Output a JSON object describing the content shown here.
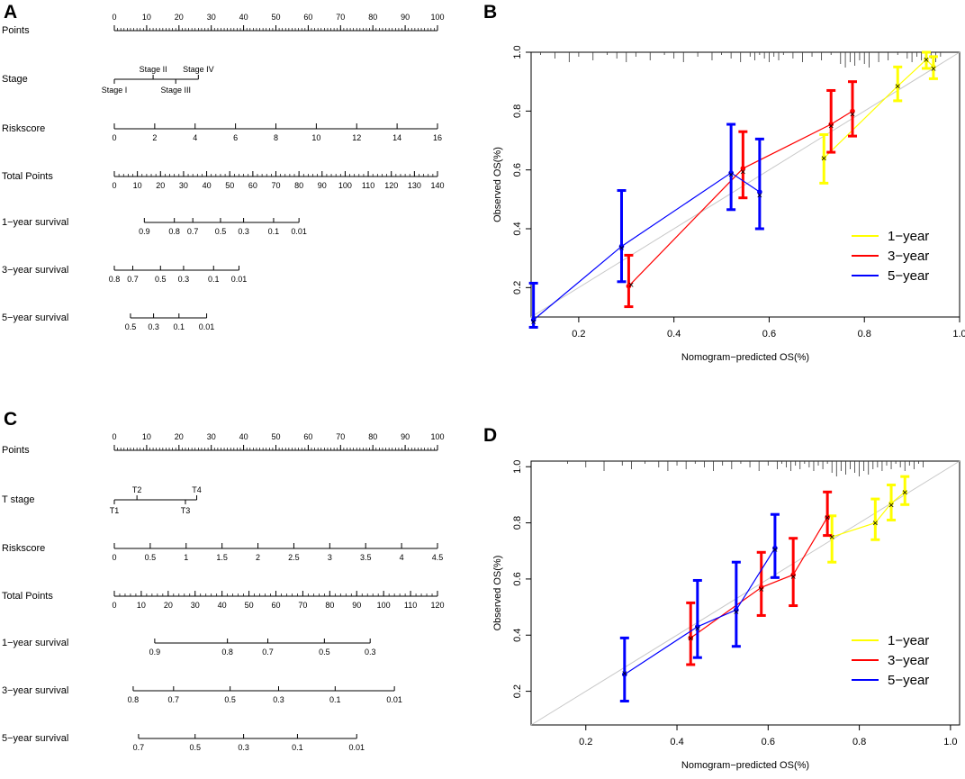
{
  "panels": {
    "A": {
      "label": "A",
      "rows": [
        {
          "name": "Points",
          "ticks": [
            {
              "v": 0,
              "t": "0"
            },
            {
              "v": 10,
              "t": "10"
            },
            {
              "v": 20,
              "t": "20"
            },
            {
              "v": 30,
              "t": "30"
            },
            {
              "v": 40,
              "t": "40"
            },
            {
              "v": 50,
              "t": "50"
            },
            {
              "v": 60,
              "t": "60"
            },
            {
              "v": 70,
              "t": "70"
            },
            {
              "v": 80,
              "t": "80"
            },
            {
              "v": 90,
              "t": "90"
            },
            {
              "v": 100,
              "t": "100"
            }
          ],
          "minor_step": 1,
          "range": [
            0,
            100
          ]
        },
        {
          "name": "Stage",
          "type": "categorical",
          "categories": [
            {
              "label": "Stage I",
              "points": 0,
              "pos": "below"
            },
            {
              "label": "Stage II",
              "points": 12,
              "pos": "above"
            },
            {
              "label": "Stage III",
              "points": 19,
              "pos": "below"
            },
            {
              "label": "Stage IV",
              "points": 26,
              "pos": "above"
            }
          ]
        },
        {
          "name": "Riskscore",
          "ticks": [
            {
              "v": 0,
              "t": "0"
            },
            {
              "v": 2,
              "t": "2"
            },
            {
              "v": 4,
              "t": "4"
            },
            {
              "v": 6,
              "t": "6"
            },
            {
              "v": 8,
              "t": "8"
            },
            {
              "v": 10,
              "t": "10"
            },
            {
              "v": 12,
              "t": "12"
            },
            {
              "v": 14,
              "t": "14"
            },
            {
              "v": 16,
              "t": "16"
            }
          ],
          "range": [
            0,
            16
          ],
          "points_range": [
            0,
            100
          ]
        },
        {
          "name": "Total Points",
          "ticks": [
            {
              "v": 0,
              "t": "0"
            },
            {
              "v": 10,
              "t": "10"
            },
            {
              "v": 20,
              "t": "20"
            },
            {
              "v": 30,
              "t": "30"
            },
            {
              "v": 40,
              "t": "40"
            },
            {
              "v": 50,
              "t": "50"
            },
            {
              "v": 60,
              "t": "60"
            },
            {
              "v": 70,
              "t": "70"
            },
            {
              "v": 80,
              "t": "80"
            },
            {
              "v": 90,
              "t": "90"
            },
            {
              "v": 100,
              "t": "100"
            },
            {
              "v": 110,
              "t": "110"
            },
            {
              "v": 120,
              "t": "120"
            },
            {
              "v": 130,
              "t": "130"
            },
            {
              "v": 140,
              "t": "140"
            }
          ],
          "minor_step": 2,
          "range": [
            0,
            140
          ]
        },
        {
          "name": "1−year survival",
          "type": "survival",
          "total_range": [
            0,
            140
          ],
          "ticks": [
            {
              "tp": 13,
              "t": "0.9"
            },
            {
              "tp": 26,
              "t": "0.8"
            },
            {
              "tp": 34,
              "t": "0.7"
            },
            {
              "tp": 46,
              "t": "0.5"
            },
            {
              "tp": 56,
              "t": "0.3"
            },
            {
              "tp": 69,
              "t": "0.1"
            },
            {
              "tp": 80,
              "t": "0.01"
            }
          ]
        },
        {
          "name": "3−year survival",
          "type": "survival",
          "total_range": [
            0,
            140
          ],
          "ticks": [
            {
              "tp": 0,
              "t": "0.8"
            },
            {
              "tp": 8,
              "t": "0.7"
            },
            {
              "tp": 20,
              "t": "0.5"
            },
            {
              "tp": 30,
              "t": "0.3"
            },
            {
              "tp": 43,
              "t": "0.1"
            },
            {
              "tp": 54,
              "t": "0.01"
            }
          ]
        },
        {
          "name": "5−year survival",
          "type": "survival",
          "total_range": [
            0,
            140
          ],
          "ticks": [
            {
              "tp": 7,
              "t": "0.5"
            },
            {
              "tp": 17,
              "t": "0.3"
            },
            {
              "tp": 28,
              "t": "0.1"
            },
            {
              "tp": 40,
              "t": "0.01"
            }
          ]
        }
      ]
    },
    "C": {
      "label": "C",
      "rows": [
        {
          "name": "Points",
          "ticks": [
            {
              "v": 0,
              "t": "0"
            },
            {
              "v": 10,
              "t": "10"
            },
            {
              "v": 20,
              "t": "20"
            },
            {
              "v": 30,
              "t": "30"
            },
            {
              "v": 40,
              "t": "40"
            },
            {
              "v": 50,
              "t": "50"
            },
            {
              "v": 60,
              "t": "60"
            },
            {
              "v": 70,
              "t": "70"
            },
            {
              "v": 80,
              "t": "80"
            },
            {
              "v": 90,
              "t": "90"
            },
            {
              "v": 100,
              "t": "100"
            }
          ],
          "minor_step": 1,
          "range": [
            0,
            100
          ]
        },
        {
          "name": "T stage",
          "type": "categorical",
          "categories": [
            {
              "label": "T1",
              "points": 0,
              "pos": "below"
            },
            {
              "label": "T2",
              "points": 7,
              "pos": "above"
            },
            {
              "label": "T3",
              "points": 22,
              "pos": "below"
            },
            {
              "label": "T4",
              "points": 25.5,
              "pos": "above"
            }
          ]
        },
        {
          "name": "Riskscore",
          "ticks": [
            {
              "v": 0,
              "t": "0"
            },
            {
              "v": 0.5,
              "t": "0.5"
            },
            {
              "v": 1,
              "t": "1"
            },
            {
              "v": 1.5,
              "t": "1.5"
            },
            {
              "v": 2,
              "t": "2"
            },
            {
              "v": 2.5,
              "t": "2.5"
            },
            {
              "v": 3,
              "t": "3"
            },
            {
              "v": 3.5,
              "t": "3.5"
            },
            {
              "v": 4,
              "t": "4"
            },
            {
              "v": 4.5,
              "t": "4.5"
            }
          ],
          "range": [
            0,
            4.5
          ],
          "points_range": [
            0,
            100
          ]
        },
        {
          "name": "Total Points",
          "ticks": [
            {
              "v": 0,
              "t": "0"
            },
            {
              "v": 10,
              "t": "10"
            },
            {
              "v": 20,
              "t": "20"
            },
            {
              "v": 30,
              "t": "30"
            },
            {
              "v": 40,
              "t": "40"
            },
            {
              "v": 50,
              "t": "50"
            },
            {
              "v": 60,
              "t": "60"
            },
            {
              "v": 70,
              "t": "70"
            },
            {
              "v": 80,
              "t": "80"
            },
            {
              "v": 90,
              "t": "90"
            },
            {
              "v": 100,
              "t": "100"
            },
            {
              "v": 110,
              "t": "110"
            },
            {
              "v": 120,
              "t": "120"
            }
          ],
          "minor_step": 2,
          "range": [
            0,
            120
          ]
        },
        {
          "name": "1−year survival",
          "type": "survival",
          "total_range": [
            0,
            120
          ],
          "ticks": [
            {
              "tp": 15,
              "t": "0.9"
            },
            {
              "tp": 42,
              "t": "0.8"
            },
            {
              "tp": 57,
              "t": "0.7"
            },
            {
              "tp": 78,
              "t": "0.5"
            },
            {
              "tp": 95,
              "t": "0.3"
            }
          ]
        },
        {
          "name": "3−year survival",
          "type": "survival",
          "total_range": [
            0,
            120
          ],
          "ticks": [
            {
              "tp": 7,
              "t": "0.8"
            },
            {
              "tp": 22,
              "t": "0.7"
            },
            {
              "tp": 43,
              "t": "0.5"
            },
            {
              "tp": 61,
              "t": "0.3"
            },
            {
              "tp": 82,
              "t": "0.1"
            },
            {
              "tp": 104,
              "t": "0.01"
            }
          ]
        },
        {
          "name": "5−year survival",
          "type": "survival",
          "total_range": [
            0,
            120
          ],
          "ticks": [
            {
              "tp": 9,
              "t": "0.7"
            },
            {
              "tp": 30,
              "t": "0.5"
            },
            {
              "tp": 48,
              "t": "0.3"
            },
            {
              "tp": 68,
              "t": "0.1"
            },
            {
              "tp": 90,
              "t": "0.01"
            }
          ]
        }
      ]
    }
  },
  "chart_data": [
    {
      "panel": "B",
      "type": "line",
      "title": "",
      "xlabel": "Nomogram−predicted OS(%)",
      "ylabel": "Observed OS(%)",
      "xlim": [
        0.1,
        1.0
      ],
      "ylim": [
        0.1,
        1.0
      ],
      "xticks": [
        "0.2",
        "0.4",
        "0.6",
        "0.8",
        "1.0"
      ],
      "yticks": [
        "0.2",
        "0.4",
        "0.6",
        "0.8",
        "1.0"
      ],
      "legend": [
        "1−year",
        "3−year",
        "5−year"
      ],
      "legend_position": "bottom-right",
      "series": [
        {
          "name": "1−year",
          "color": "#ffff00",
          "points": [
            {
              "x": 0.715,
              "y": 0.64,
              "lo": 0.555,
              "hi": 0.72
            },
            {
              "x": 0.87,
              "y": 0.885,
              "lo": 0.835,
              "hi": 0.95
            },
            {
              "x": 0.93,
              "y": 0.975,
              "lo": 0.945,
              "hi": 1.0
            },
            {
              "x": 0.945,
              "y": 0.95,
              "lo": 0.91,
              "hi": 0.985
            }
          ]
        },
        {
          "name": "3−year",
          "color": "#ff0000",
          "points": [
            {
              "x": 0.305,
              "y": 0.205,
              "lo": 0.135,
              "hi": 0.31
            },
            {
              "x": 0.545,
              "y": 0.605,
              "lo": 0.505,
              "hi": 0.73
            },
            {
              "x": 0.73,
              "y": 0.755,
              "lo": 0.66,
              "hi": 0.87
            },
            {
              "x": 0.775,
              "y": 0.8,
              "lo": 0.715,
              "hi": 0.9
            }
          ]
        },
        {
          "name": "5−year",
          "color": "#0000ff",
          "points": [
            {
              "x": 0.105,
              "y": 0.09,
              "lo": 0.065,
              "hi": 0.215
            },
            {
              "x": 0.29,
              "y": 0.34,
              "lo": 0.22,
              "hi": 0.53
            },
            {
              "x": 0.52,
              "y": 0.59,
              "lo": 0.465,
              "hi": 0.755
            },
            {
              "x": 0.58,
              "y": 0.525,
              "lo": 0.4,
              "hi": 0.705
            }
          ]
        }
      ],
      "x_marks": [
        {
          "x": 0.715,
          "y": 0.64
        },
        {
          "x": 0.87,
          "y": 0.885
        },
        {
          "x": 0.93,
          "y": 0.975
        },
        {
          "x": 0.945,
          "y": 0.945
        },
        {
          "x": 0.31,
          "y": 0.21
        },
        {
          "x": 0.545,
          "y": 0.595
        },
        {
          "x": 0.73,
          "y": 0.75
        },
        {
          "x": 0.775,
          "y": 0.79
        },
        {
          "x": 0.105,
          "y": 0.085
        },
        {
          "x": 0.29,
          "y": 0.335
        },
        {
          "x": 0.52,
          "y": 0.585
        },
        {
          "x": 0.58,
          "y": 0.515
        }
      ],
      "rug": [
        0.12,
        0.15,
        0.18,
        0.2,
        0.23,
        0.26,
        0.28,
        0.3,
        0.32,
        0.35,
        0.38,
        0.4,
        0.42,
        0.45,
        0.48,
        0.5,
        0.52,
        0.54,
        0.56,
        0.57,
        0.58,
        0.59,
        0.6,
        0.61,
        0.62,
        0.63,
        0.65,
        0.67,
        0.69,
        0.71,
        0.73,
        0.75,
        0.76,
        0.77,
        0.78,
        0.79,
        0.8,
        0.81,
        0.83,
        0.85,
        0.87,
        0.89,
        0.9,
        0.91,
        0.92,
        0.93,
        0.94,
        0.95,
        0.96
      ]
    },
    {
      "panel": "D",
      "type": "line",
      "title": "",
      "xlabel": "Nomogram−predicted OS(%)",
      "ylabel": "Observed OS(%)",
      "xlim": [
        0.08,
        1.02
      ],
      "ylim": [
        0.08,
        1.02
      ],
      "xticks": [
        "0.2",
        "0.4",
        "0.6",
        "0.8",
        "1.0"
      ],
      "yticks": [
        "0.2",
        "0.4",
        "0.6",
        "0.8",
        "1.0"
      ],
      "legend": [
        "1−year",
        "3−year",
        "5−year"
      ],
      "legend_position": "bottom-right",
      "series": [
        {
          "name": "1−year",
          "color": "#ffff00",
          "points": [
            {
              "x": 0.74,
              "y": 0.75,
              "lo": 0.66,
              "hi": 0.825
            },
            {
              "x": 0.835,
              "y": 0.8,
              "lo": 0.74,
              "hi": 0.885
            },
            {
              "x": 0.87,
              "y": 0.87,
              "lo": 0.81,
              "hi": 0.935
            },
            {
              "x": 0.9,
              "y": 0.91,
              "lo": 0.865,
              "hi": 0.965
            }
          ]
        },
        {
          "name": "3−year",
          "color": "#ff0000",
          "points": [
            {
              "x": 0.43,
              "y": 0.39,
              "lo": 0.295,
              "hi": 0.515
            },
            {
              "x": 0.585,
              "y": 0.57,
              "lo": 0.47,
              "hi": 0.695
            },
            {
              "x": 0.655,
              "y": 0.615,
              "lo": 0.505,
              "hi": 0.745
            },
            {
              "x": 0.73,
              "y": 0.82,
              "lo": 0.755,
              "hi": 0.91
            }
          ]
        },
        {
          "name": "5−year",
          "color": "#0000ff",
          "points": [
            {
              "x": 0.285,
              "y": 0.26,
              "lo": 0.165,
              "hi": 0.39
            },
            {
              "x": 0.445,
              "y": 0.43,
              "lo": 0.32,
              "hi": 0.595
            },
            {
              "x": 0.53,
              "y": 0.49,
              "lo": 0.36,
              "hi": 0.66
            },
            {
              "x": 0.615,
              "y": 0.71,
              "lo": 0.605,
              "hi": 0.83
            }
          ]
        }
      ],
      "x_marks": [
        {
          "x": 0.74,
          "y": 0.75
        },
        {
          "x": 0.835,
          "y": 0.8
        },
        {
          "x": 0.87,
          "y": 0.865
        },
        {
          "x": 0.9,
          "y": 0.91
        },
        {
          "x": 0.43,
          "y": 0.39
        },
        {
          "x": 0.585,
          "y": 0.565
        },
        {
          "x": 0.655,
          "y": 0.61
        },
        {
          "x": 0.73,
          "y": 0.82
        },
        {
          "x": 0.285,
          "y": 0.265
        },
        {
          "x": 0.445,
          "y": 0.425
        },
        {
          "x": 0.53,
          "y": 0.485
        },
        {
          "x": 0.615,
          "y": 0.705
        }
      ],
      "rug": [
        0.16,
        0.2,
        0.24,
        0.28,
        0.3,
        0.33,
        0.36,
        0.38,
        0.4,
        0.42,
        0.44,
        0.46,
        0.48,
        0.5,
        0.52,
        0.54,
        0.56,
        0.58,
        0.6,
        0.62,
        0.63,
        0.64,
        0.65,
        0.66,
        0.67,
        0.68,
        0.69,
        0.7,
        0.71,
        0.72,
        0.73,
        0.74,
        0.75,
        0.76,
        0.77,
        0.78,
        0.79,
        0.8,
        0.81,
        0.82,
        0.83,
        0.84,
        0.85,
        0.86,
        0.87,
        0.88,
        0.89,
        0.9,
        0.91,
        0.92,
        0.93,
        0.94
      ]
    }
  ]
}
